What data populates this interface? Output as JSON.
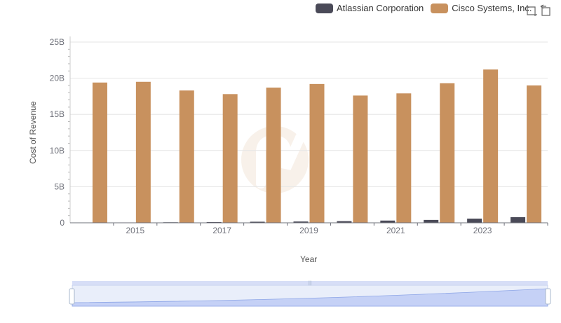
{
  "legend": {
    "series1": "Atlassian Corporation",
    "series2": "Cisco Systems, Inc."
  },
  "toolbox": {
    "zoom": "zoom-icon",
    "restore": "restore-icon"
  },
  "colors": {
    "atlassian": "#4a4a58",
    "cisco": "#c8915e",
    "grid": "#e6e6e6",
    "axis": "#6e7079"
  },
  "chart_data": {
    "type": "bar",
    "title": "",
    "xlabel": "Year",
    "ylabel": "Cost of Revenue",
    "ylim": [
      0,
      25000000000
    ],
    "yticks": [
      0,
      5000000000,
      10000000000,
      15000000000,
      20000000000,
      25000000000
    ],
    "ytick_labels": [
      "0",
      "5B",
      "10B",
      "15B",
      "20B",
      "25B"
    ],
    "categories": [
      "2014",
      "2015",
      "2016",
      "2017",
      "2018",
      "2019",
      "2020",
      "2021",
      "2022",
      "2023",
      "2024"
    ],
    "xtick_labels": [
      "2015",
      "2017",
      "2019",
      "2021",
      "2023"
    ],
    "series": [
      {
        "name": "Atlassian Corporation",
        "values": [
          35000000,
          50000000,
          75000000,
          105000000,
          150000000,
          180000000,
          230000000,
          310000000,
          400000000,
          580000000,
          780000000
        ]
      },
      {
        "name": "Cisco Systems, Inc.",
        "values": [
          19400000000,
          19500000000,
          18300000000,
          17800000000,
          18700000000,
          19200000000,
          17600000000,
          17900000000,
          19300000000,
          21200000000,
          19000000000
        ]
      }
    ]
  }
}
